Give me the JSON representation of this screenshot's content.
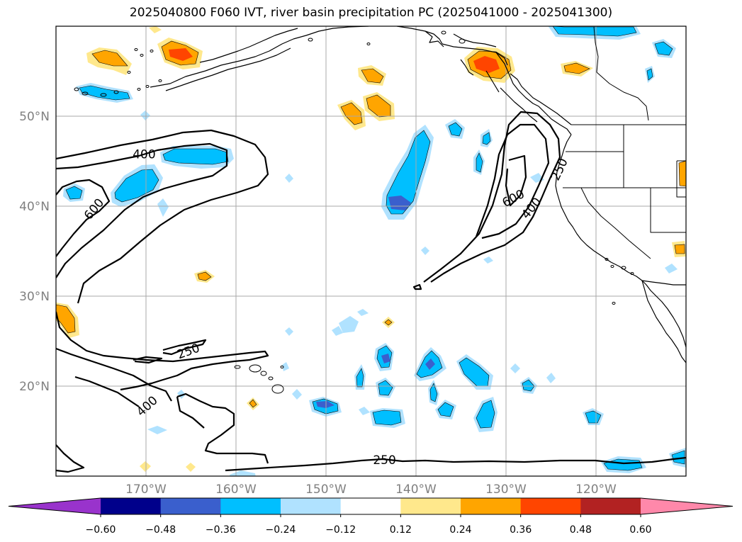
{
  "title": "2025040800 F060 IVT, river basin precipitation PC (2025041000 - 2025041300)",
  "map": {
    "projection": "PlateCarree",
    "lon_range": [
      -180,
      -110
    ],
    "lat_range": [
      10,
      60
    ],
    "grid": true,
    "lat_tick_labels": [
      "50°N",
      "40°N",
      "30°N",
      "20°N"
    ],
    "lon_tick_labels": [
      "170°W",
      "160°W",
      "150°W",
      "140°W",
      "130°W",
      "120°W"
    ],
    "ivt_contour_levels": [
      250,
      400,
      600
    ],
    "ivt_contour_labels": [
      {
        "text": "400",
        "lon": -170.2,
        "lat": 45.8
      },
      {
        "text": "600",
        "lon": -175.8,
        "lat": 39.7
      },
      {
        "text": "600",
        "lon": -129.2,
        "lat": 40.9
      },
      {
        "text": "400",
        "lon": -127.2,
        "lat": 39.8
      },
      {
        "text": "250",
        "lon": -124.1,
        "lat": 44.1
      },
      {
        "text": "250",
        "lon": -165.3,
        "lat": 23.9
      },
      {
        "text": "400",
        "lon": -169.9,
        "lat": 17.8
      },
      {
        "text": "250",
        "lon": -143.5,
        "lat": 11.8
      }
    ]
  },
  "colorbar": {
    "colors": [
      "#9933cc",
      "#00008b",
      "#3a5fcd",
      "#00bfff",
      "#b0e2ff",
      "#ffffff",
      "#ffe88c",
      "#ffa500",
      "#ff4500",
      "#b22222",
      "#ff88aa"
    ],
    "tick_labels": [
      "−0.60",
      "−0.48",
      "−0.36",
      "−0.24",
      "−0.12",
      "0.12",
      "0.24",
      "0.36",
      "0.48",
      "0.60"
    ]
  },
  "chart_data": {
    "type": "heatmap",
    "title": "2025040800 F060 IVT, river basin precipitation PC (2025041000 - 2025041300)",
    "xlabel": "",
    "ylabel": "",
    "xlim": [
      -180,
      -110
    ],
    "ylim": [
      10,
      60
    ],
    "field": "river basin precipitation PC",
    "contour_field": "IVT",
    "contour_levels": [
      250,
      400,
      600
    ],
    "color_levels": [
      -0.6,
      -0.48,
      -0.36,
      -0.24,
      -0.12,
      0.12,
      0.24,
      0.36,
      0.48,
      0.6
    ],
    "features": [
      {
        "name": "negative blob",
        "lon": -138.5,
        "lat": 42.5,
        "value": -0.48
      },
      {
        "name": "negative blob",
        "lon": -160.0,
        "lat": 45.5,
        "value": -0.36
      },
      {
        "name": "negative blob",
        "lon": -170.0,
        "lat": 42.0,
        "value": -0.36
      },
      {
        "name": "positive blob",
        "lon": -169.0,
        "lat": 56.2,
        "value": 0.36
      },
      {
        "name": "positive blob",
        "lon": -130.0,
        "lat": 55.5,
        "value": 0.48
      },
      {
        "name": "positive blob",
        "lon": -143.0,
        "lat": 50.5,
        "value": 0.24
      },
      {
        "name": "positive blob",
        "lon": -178.5,
        "lat": 28.0,
        "value": 0.24
      }
    ]
  }
}
